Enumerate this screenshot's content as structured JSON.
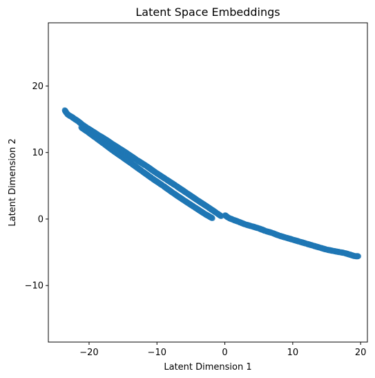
{
  "chart_data": {
    "type": "scatter",
    "title": "Latent Space Embeddings",
    "xlabel": "Latent Dimension 1",
    "ylabel": "Latent Dimension 2",
    "xlim": [
      -26,
      21
    ],
    "ylim": [
      -18.5,
      29.5
    ],
    "xticks": [
      -20,
      -10,
      0,
      10,
      20
    ],
    "yticks": [
      -10,
      0,
      10,
      20
    ],
    "xtick_labels": [
      "−20",
      "−10",
      "0",
      "10",
      "20"
    ],
    "ytick_labels": [
      "−10",
      "0",
      "10",
      "20"
    ],
    "grid": false,
    "point_color": "#1f77b4",
    "point_alpha": 0.55,
    "series": [
      {
        "band": "upper-left",
        "points": [
          [
            -23.6,
            16.4
          ],
          [
            -23.3,
            15.9
          ],
          [
            -23.0,
            15.6
          ],
          [
            -22.6,
            15.4
          ],
          [
            -22.2,
            15.1
          ],
          [
            -21.6,
            14.7
          ],
          [
            -21.0,
            14.2
          ],
          [
            -20.3,
            13.7
          ],
          [
            -19.5,
            13.2
          ],
          [
            -18.6,
            12.6
          ],
          [
            -17.6,
            12.0
          ],
          [
            -16.6,
            11.3
          ],
          [
            -15.5,
            10.6
          ],
          [
            -14.3,
            9.8
          ],
          [
            -13.0,
            8.9
          ],
          [
            -11.6,
            8.0
          ],
          [
            -10.2,
            7.0
          ],
          [
            -8.7,
            6.0
          ],
          [
            -7.2,
            5.0
          ],
          [
            -5.6,
            3.9
          ],
          [
            -4.0,
            2.8
          ],
          [
            -2.5,
            1.8
          ],
          [
            -1.2,
            0.9
          ],
          [
            -0.5,
            0.4
          ]
        ]
      },
      {
        "band": "lower-left",
        "points": [
          [
            -21.2,
            13.8
          ],
          [
            -20.2,
            13.1
          ],
          [
            -19.0,
            12.2
          ],
          [
            -17.8,
            11.3
          ],
          [
            -16.5,
            10.3
          ],
          [
            -15.1,
            9.3
          ],
          [
            -13.7,
            8.3
          ],
          [
            -12.2,
            7.2
          ],
          [
            -10.7,
            6.1
          ],
          [
            -9.1,
            5.0
          ],
          [
            -7.6,
            3.9
          ],
          [
            -6.0,
            2.8
          ],
          [
            -4.5,
            1.8
          ],
          [
            -3.0,
            0.8
          ],
          [
            -1.8,
            0.1
          ]
        ]
      },
      {
        "band": "right",
        "points": [
          [
            0.0,
            0.6
          ],
          [
            0.5,
            0.2
          ],
          [
            1.2,
            -0.1
          ],
          [
            2.0,
            -0.4
          ],
          [
            3.0,
            -0.8
          ],
          [
            4.0,
            -1.1
          ],
          [
            5.0,
            -1.4
          ],
          [
            6.0,
            -1.8
          ],
          [
            7.0,
            -2.1
          ],
          [
            8.0,
            -2.5
          ],
          [
            9.0,
            -2.8
          ],
          [
            10.0,
            -3.1
          ],
          [
            11.0,
            -3.4
          ],
          [
            12.0,
            -3.7
          ],
          [
            13.0,
            -4.0
          ],
          [
            14.0,
            -4.3
          ],
          [
            15.0,
            -4.6
          ],
          [
            16.0,
            -4.8
          ],
          [
            17.0,
            -5.0
          ],
          [
            17.6,
            -5.1
          ],
          [
            19.2,
            -5.6
          ],
          [
            19.7,
            -5.6
          ]
        ]
      }
    ]
  }
}
